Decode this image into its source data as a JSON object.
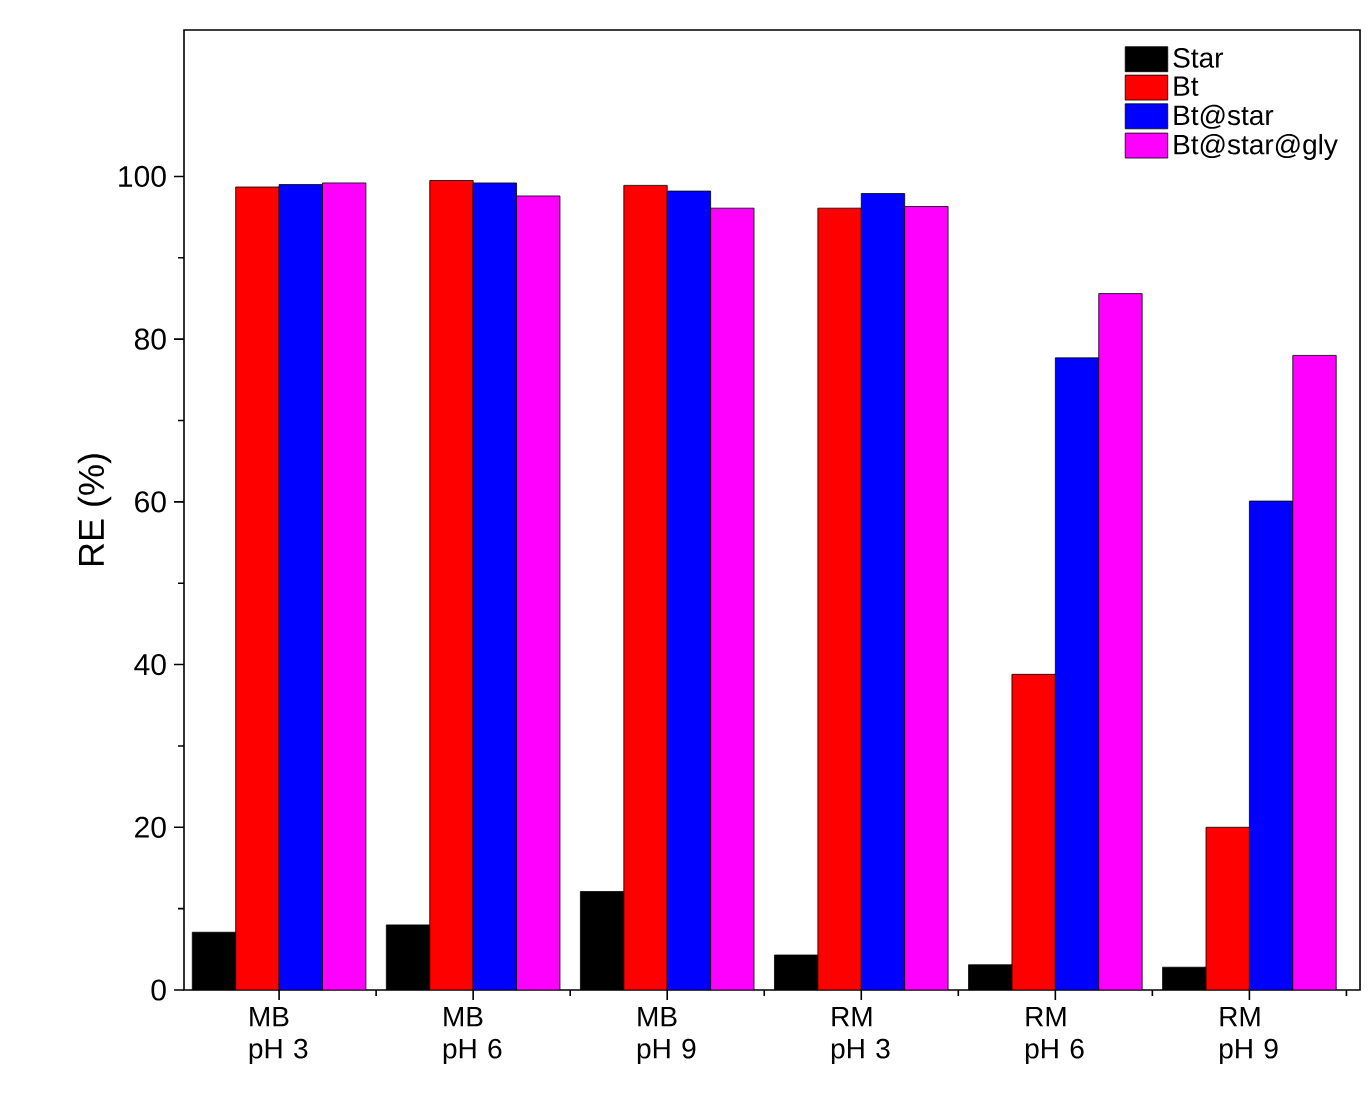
{
  "chart_data": {
    "type": "bar",
    "ylabel": "RE (%)",
    "categories": [
      "MB pH 3",
      "MB pH 6",
      "MB pH 9",
      "RM pH 3",
      "RM pH 6",
      "RM pH 9"
    ],
    "series": [
      {
        "name": "Star",
        "color": "#000000",
        "values": [
          7.1,
          8.0,
          12.1,
          4.3,
          3.1,
          2.8
        ]
      },
      {
        "name": "Bt",
        "color": "#ff0000",
        "values": [
          98.7,
          99.5,
          98.9,
          96.1,
          38.8,
          20.0
        ]
      },
      {
        "name": "Bt@star",
        "color": "#0000ff",
        "values": [
          99.0,
          99.2,
          98.2,
          97.9,
          77.7,
          60.1
        ]
      },
      {
        "name": "Bt@star@gly",
        "color": "#ff00ff",
        "values": [
          99.2,
          97.6,
          96.1,
          96.3,
          85.6,
          78.0
        ]
      }
    ],
    "ylim": [
      0,
      118
    ],
    "yticks": [
      0,
      20,
      40,
      60,
      80,
      100
    ],
    "grid": false,
    "legend": "top right"
  }
}
